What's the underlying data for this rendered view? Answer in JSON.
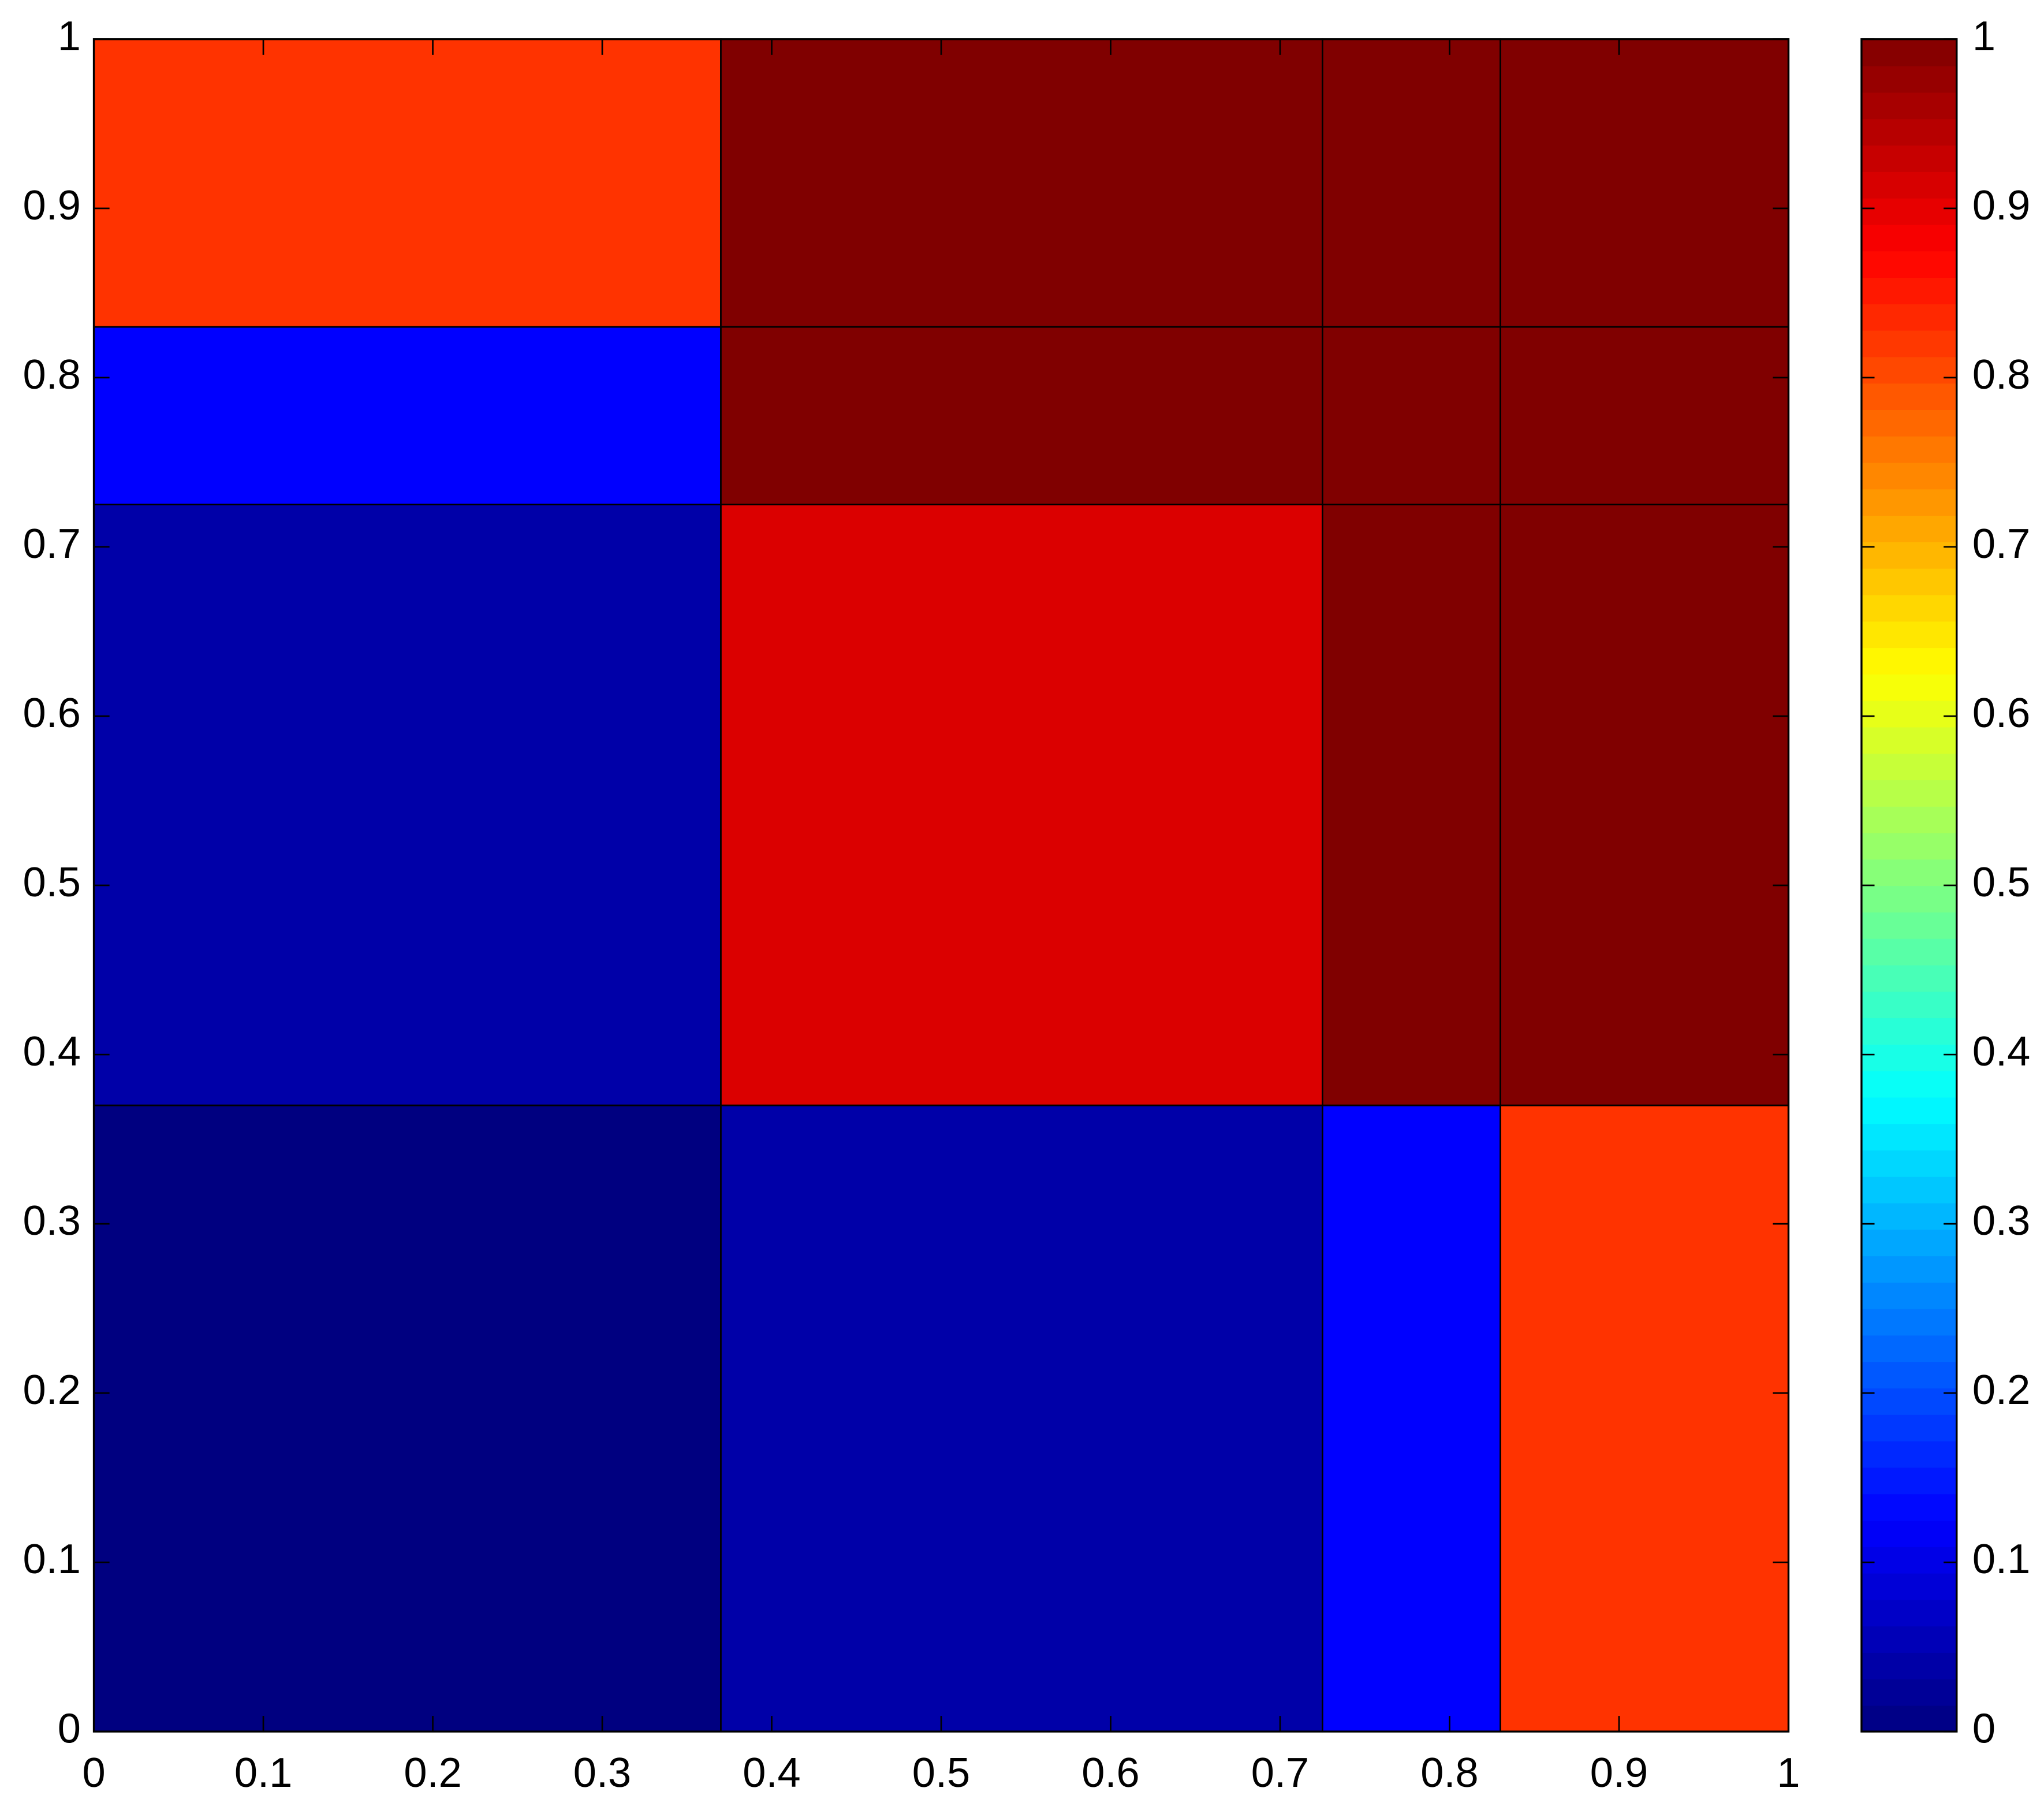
{
  "chart_data": {
    "type": "heatmap",
    "colormap": "jet",
    "x_edges": [
      0,
      0.37,
      0.725,
      0.83,
      1
    ],
    "y_edges": [
      0,
      0.37,
      0.725,
      0.83,
      1
    ],
    "values": [
      [
        0.0,
        0.04,
        0.125,
        0.825
      ],
      [
        0.04,
        0.91,
        1,
        1
      ],
      [
        0.125,
        1,
        1,
        1
      ],
      [
        0.825,
        1,
        1,
        1
      ]
    ],
    "xlim": [
      0,
      1
    ],
    "ylim": [
      0,
      1
    ],
    "xticks": [
      0,
      0.1,
      0.2,
      0.3,
      0.4,
      0.5,
      0.6,
      0.7,
      0.8,
      0.9,
      1
    ],
    "yticks": [
      0,
      0.1,
      0.2,
      0.3,
      0.4,
      0.5,
      0.6,
      0.7,
      0.8,
      0.9,
      1
    ],
    "colorbar": {
      "lim": [
        0,
        1
      ],
      "ticks": [
        0,
        0.1,
        0.2,
        0.3,
        0.4,
        0.5,
        0.6,
        0.7,
        0.8,
        0.9,
        1
      ]
    }
  }
}
